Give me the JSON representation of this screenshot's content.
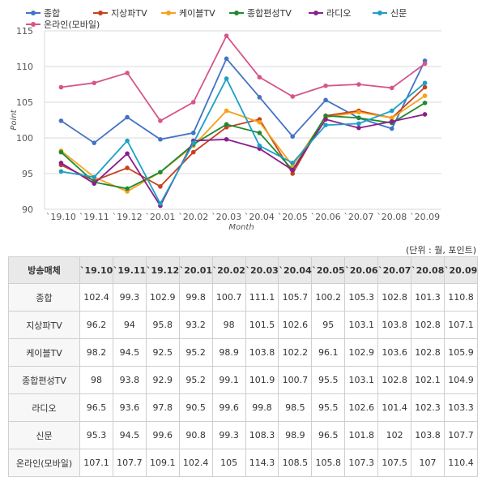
{
  "chart_data": {
    "type": "line",
    "x": [
      "`19.10",
      "`19.11",
      "`19.12",
      "`20.01",
      "`20.02",
      "`20.03",
      "`20.04",
      "`20.05",
      "`20.06",
      "`20.07",
      "`20.08",
      "`20.09"
    ],
    "xlabel": "Month",
    "ylabel": "Point",
    "ylim": [
      90,
      115
    ],
    "yticks": [
      90,
      95,
      100,
      105,
      110,
      115
    ],
    "grid": true,
    "legend": "top",
    "series": [
      {
        "name": "종합",
        "color": "#4472c4",
        "values": [
          102.4,
          99.3,
          102.9,
          99.8,
          100.7,
          111.1,
          105.7,
          100.2,
          105.3,
          102.8,
          101.3,
          110.8
        ]
      },
      {
        "name": "지상파TV",
        "color": "#c8401e",
        "values": [
          96.2,
          94,
          95.8,
          93.2,
          98,
          101.5,
          102.6,
          95,
          103.1,
          103.8,
          102.8,
          107.1
        ]
      },
      {
        "name": "케이블TV",
        "color": "#f4a21c",
        "values": [
          98.2,
          94.5,
          92.5,
          95.2,
          98.9,
          103.8,
          102.2,
          96.1,
          102.9,
          103.6,
          102.8,
          105.9
        ]
      },
      {
        "name": "종합편성TV",
        "color": "#1e8a2e",
        "values": [
          98,
          93.8,
          92.9,
          95.2,
          99.1,
          101.9,
          100.7,
          95.5,
          103.1,
          102.8,
          102.1,
          104.9
        ]
      },
      {
        "name": "라디오",
        "color": "#8a1f8c",
        "values": [
          96.5,
          93.6,
          97.8,
          90.5,
          99.6,
          99.8,
          98.5,
          95.5,
          102.6,
          101.4,
          102.3,
          103.3
        ]
      },
      {
        "name": "신문",
        "color": "#1ca0c4",
        "values": [
          95.3,
          94.5,
          99.6,
          90.8,
          99.3,
          108.3,
          98.9,
          96.5,
          101.8,
          102,
          103.8,
          107.7
        ]
      },
      {
        "name": "온라인(모바일)",
        "color": "#d6558a",
        "values": [
          107.1,
          107.7,
          109.1,
          102.4,
          105,
          114.3,
          108.5,
          105.8,
          107.3,
          107.5,
          107,
          110.4
        ]
      }
    ]
  },
  "table": {
    "unit_note": "(단위 : 월, 포인트)",
    "header_label": "방송매체",
    "columns": [
      "`19.10",
      "`19.11",
      "`19.12",
      "`20.01",
      "`20.02",
      "`20.03",
      "`20.04",
      "`20.05",
      "`20.06",
      "`20.07",
      "`20.08",
      "`20.09"
    ],
    "rows": [
      {
        "label": "종합",
        "values": [
          "102.4",
          "99.3",
          "102.9",
          "99.8",
          "100.7",
          "111.1",
          "105.7",
          "100.2",
          "105.3",
          "102.8",
          "101.3",
          "110.8"
        ]
      },
      {
        "label": "지상파TV",
        "values": [
          "96.2",
          "94",
          "95.8",
          "93.2",
          "98",
          "101.5",
          "102.6",
          "95",
          "103.1",
          "103.8",
          "102.8",
          "107.1"
        ]
      },
      {
        "label": "케이블TV",
        "values": [
          "98.2",
          "94.5",
          "92.5",
          "95.2",
          "98.9",
          "103.8",
          "102.2",
          "96.1",
          "102.9",
          "103.6",
          "102.8",
          "105.9"
        ]
      },
      {
        "label": "종합편성TV",
        "values": [
          "98",
          "93.8",
          "92.9",
          "95.2",
          "99.1",
          "101.9",
          "100.7",
          "95.5",
          "103.1",
          "102.8",
          "102.1",
          "104.9"
        ]
      },
      {
        "label": "라디오",
        "values": [
          "96.5",
          "93.6",
          "97.8",
          "90.5",
          "99.6",
          "99.8",
          "98.5",
          "95.5",
          "102.6",
          "101.4",
          "102.3",
          "103.3"
        ]
      },
      {
        "label": "신문",
        "values": [
          "95.3",
          "94.5",
          "99.6",
          "90.8",
          "99.3",
          "108.3",
          "98.9",
          "96.5",
          "101.8",
          "102",
          "103.8",
          "107.7"
        ]
      },
      {
        "label": "온라인(모바일)",
        "values": [
          "107.1",
          "107.7",
          "109.1",
          "102.4",
          "105",
          "114.3",
          "108.5",
          "105.8",
          "107.3",
          "107.5",
          "107",
          "110.4"
        ]
      }
    ]
  }
}
